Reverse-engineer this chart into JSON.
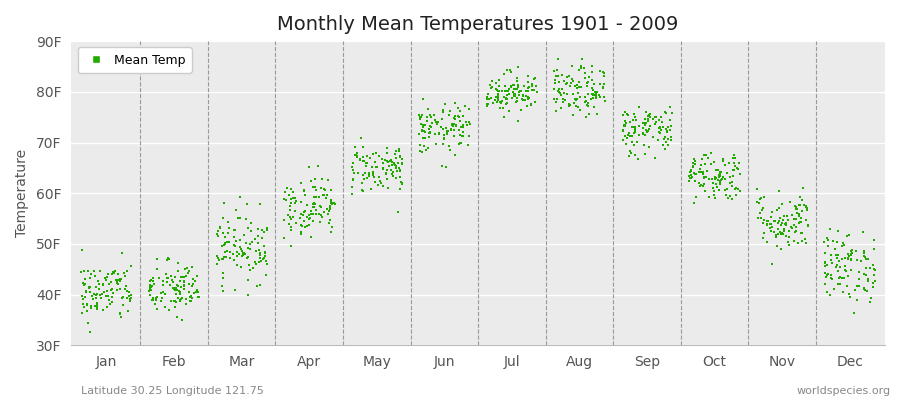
{
  "title": "Monthly Mean Temperatures 1901 - 2009",
  "ylabel": "Temperature",
  "subtitle_left": "Latitude 30.25 Longitude 121.75",
  "subtitle_right": "worldspecies.org",
  "legend_label": "Mean Temp",
  "ylim": [
    30,
    90
  ],
  "yticks": [
    30,
    40,
    50,
    60,
    70,
    80,
    90
  ],
  "ytick_labels": [
    "30F",
    "40F",
    "50F",
    "60F",
    "70F",
    "80F",
    "90F"
  ],
  "month_names": [
    "Jan",
    "Feb",
    "Mar",
    "Apr",
    "May",
    "Jun",
    "Jul",
    "Aug",
    "Sep",
    "Oct",
    "Nov",
    "Dec"
  ],
  "dot_color": "#22aa00",
  "background_color": "#ffffff",
  "plot_bg_color": "#ebebeb",
  "grid_color": "#ffffff",
  "dash_color": "#999999",
  "monthly_mean_temps": [
    40.5,
    41.0,
    49.5,
    57.5,
    65.0,
    72.5,
    80.0,
    80.0,
    72.5,
    63.5,
    54.5,
    45.5
  ],
  "monthly_std": [
    3.0,
    2.8,
    3.5,
    3.0,
    2.5,
    2.5,
    2.0,
    2.5,
    2.5,
    2.5,
    3.0,
    3.5
  ],
  "n_years": 109,
  "dot_size": 3,
  "title_fontsize": 14,
  "axis_label_fontsize": 10,
  "tick_fontsize": 10,
  "subtitle_fontsize": 8
}
